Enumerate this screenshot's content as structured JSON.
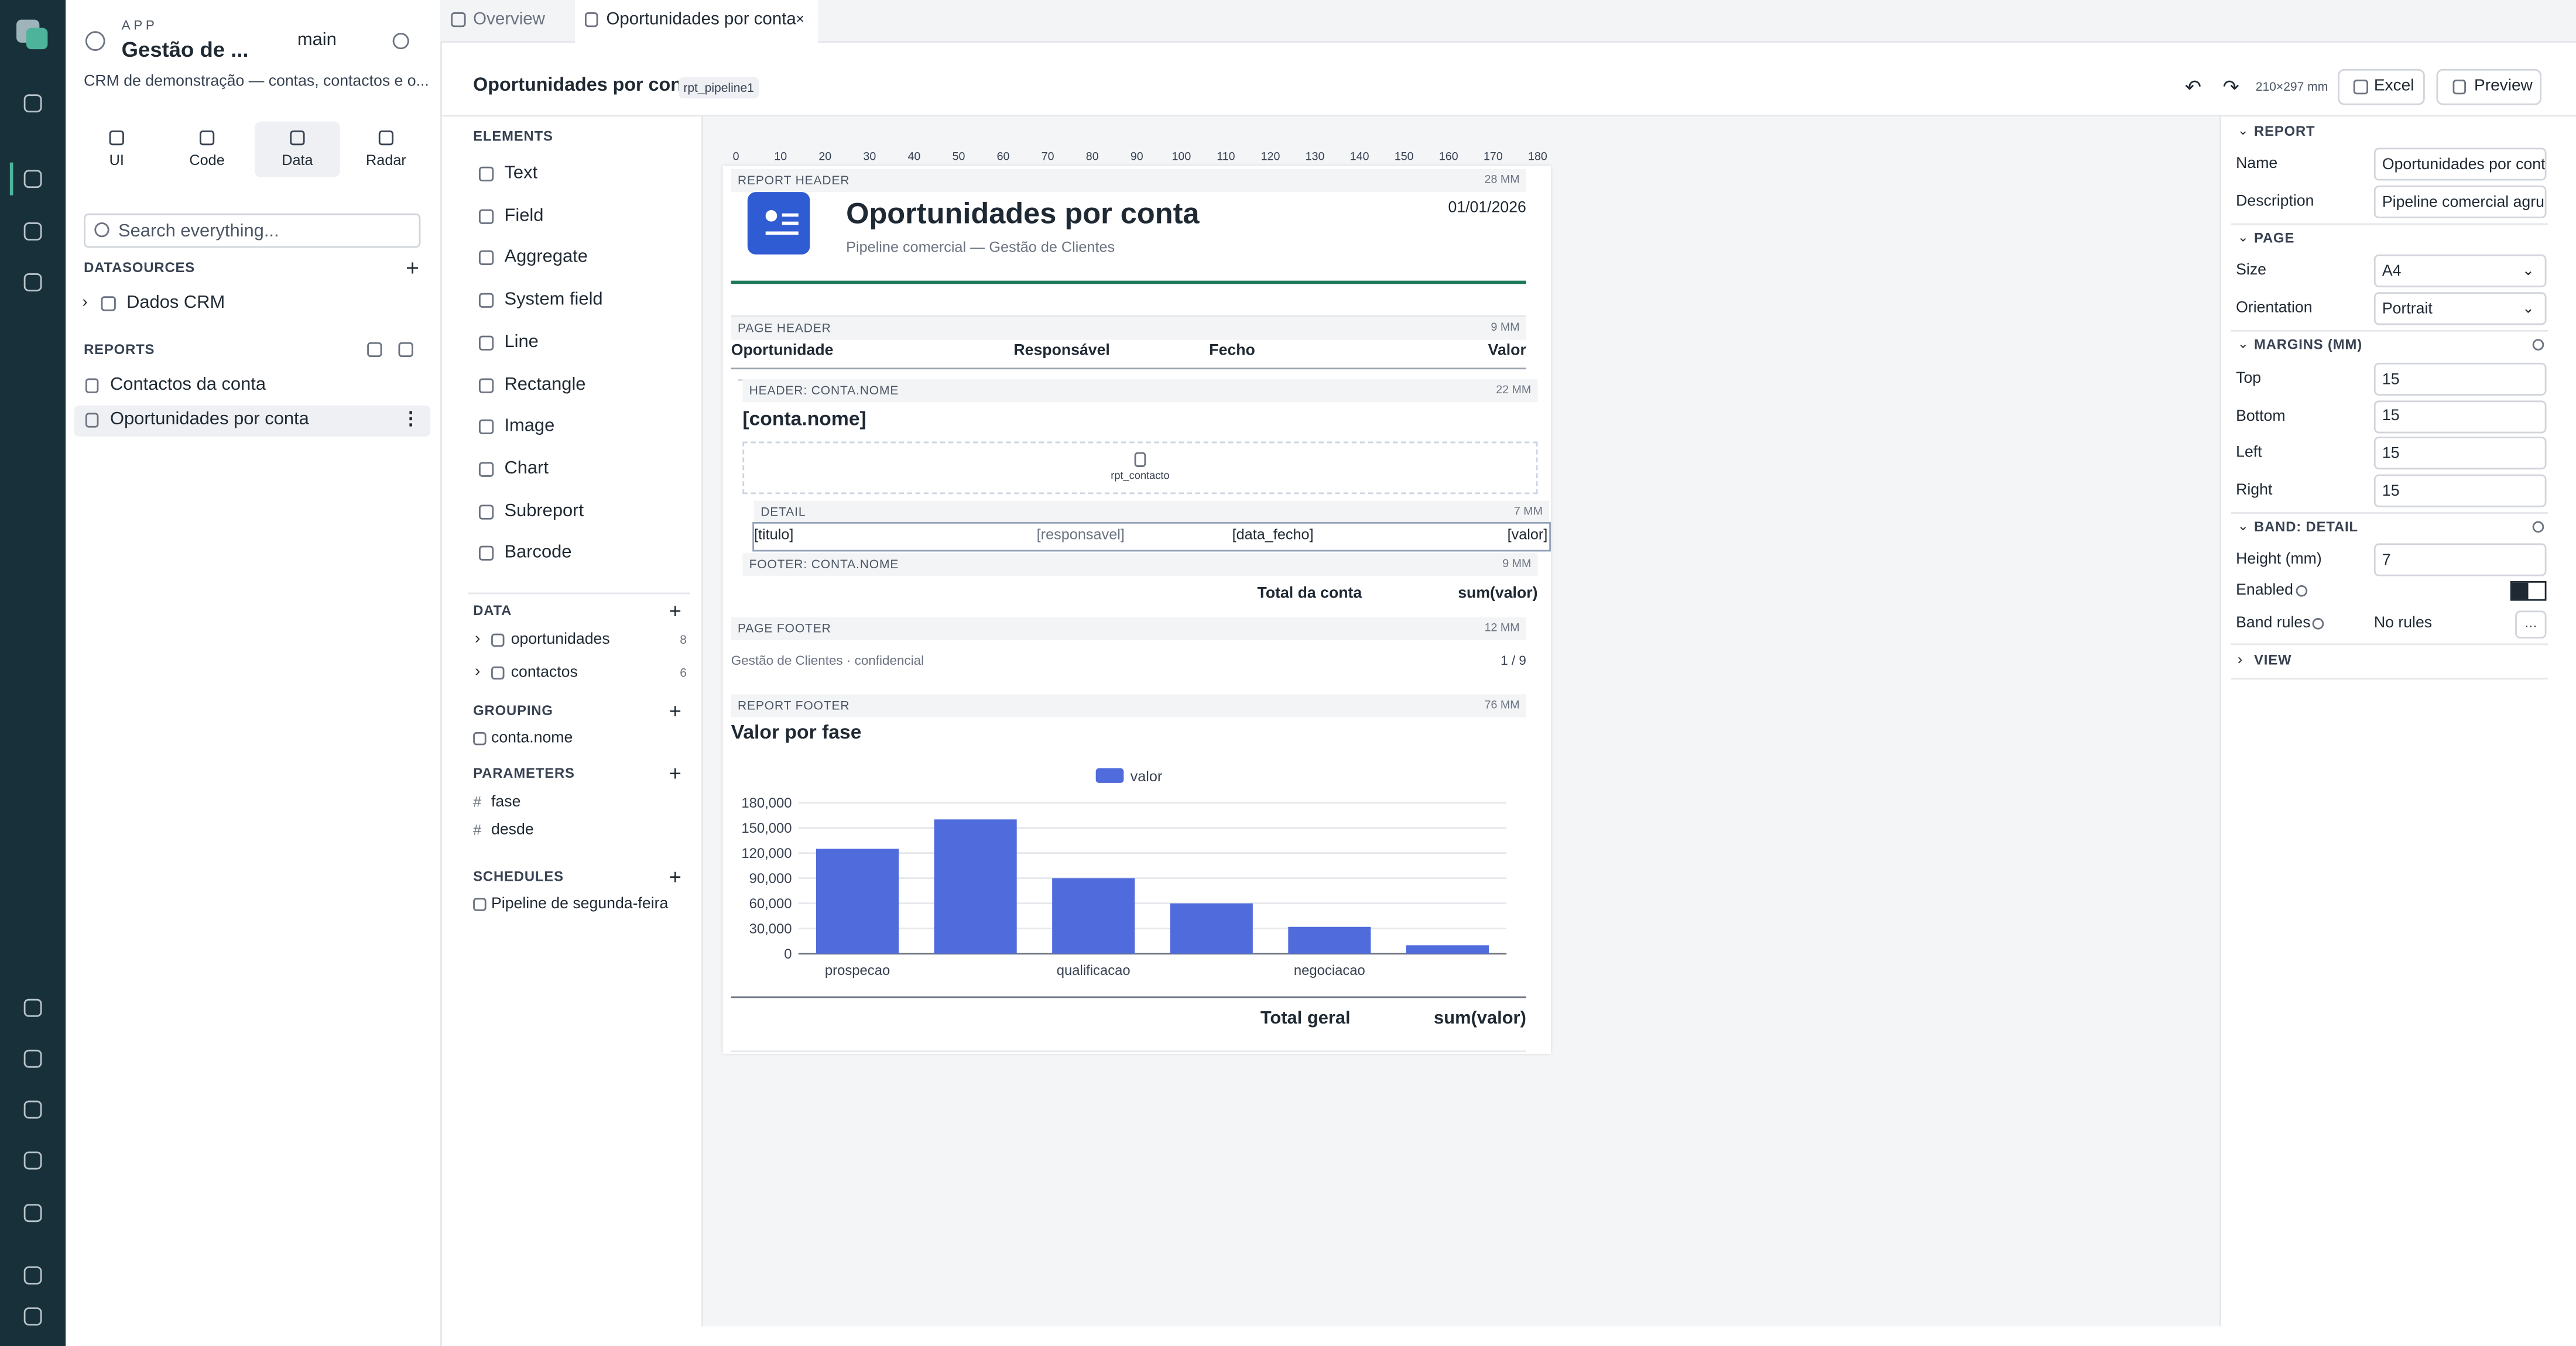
{
  "tabs": [
    "Overview",
    "Oportunidades por conta"
  ],
  "app": {
    "kicker": "APP",
    "name": "Gestão de ...",
    "branch": "main",
    "description": "CRM de demonstração — contas, contactos e o..."
  },
  "modes": [
    "UI",
    "Code",
    "Data",
    "Radar"
  ],
  "search_placeholder": "Search everything...",
  "datasources": {
    "title": "DATASOURCES",
    "items": [
      "Dados CRM"
    ]
  },
  "reports": {
    "title": "REPORTS",
    "items": [
      "Contactos da conta",
      "Oportunidades por conta"
    ]
  },
  "editor": {
    "title": "Oportunidades por conta",
    "id": "rpt_pipeline1",
    "page_size": "210×297 mm",
    "actions": [
      "Excel",
      "Preview"
    ]
  },
  "elements": {
    "title": "ELEMENTS",
    "items": [
      "Text",
      "Field",
      "Aggregate",
      "System field",
      "Line",
      "Rectangle",
      "Image",
      "Chart",
      "Subreport",
      "Barcode"
    ]
  },
  "data": {
    "title": "DATA",
    "items": [
      {
        "name": "oportunidades",
        "count": 8
      },
      {
        "name": "contactos",
        "count": 6
      }
    ]
  },
  "grouping": {
    "title": "GROUPING",
    "items": [
      "conta.nome"
    ]
  },
  "parameters": {
    "title": "PARAMETERS",
    "items": [
      "fase",
      "desde"
    ]
  },
  "schedules": {
    "title": "SCHEDULES",
    "items": [
      "Pipeline de segunda-feira"
    ]
  },
  "ruler": [
    0,
    10,
    20,
    30,
    40,
    50,
    60,
    70,
    80,
    90,
    100,
    110,
    120,
    130,
    140,
    150,
    160,
    170,
    180
  ],
  "report": {
    "header": {
      "band": "REPORT HEADER",
      "height": "28 MM",
      "title": "Oportunidades por conta",
      "subtitle": "Pipeline comercial — Gestão de Clientes",
      "date": "01/01/2026"
    },
    "page_header": {
      "band": "PAGE HEADER",
      "height": "9 MM",
      "columns": [
        "Oportunidade",
        "Responsável",
        "Fecho",
        "Valor"
      ]
    },
    "group_header": {
      "band": "HEADER: CONTA.NOME",
      "height": "22 MM",
      "field": "[conta.nome]",
      "subreport": "rpt_contacto"
    },
    "detail": {
      "band": "DETAIL",
      "height": "7 MM",
      "fields": [
        "[titulo]",
        "[responsavel]",
        "[data_fecho]",
        "[valor]"
      ]
    },
    "group_footer": {
      "band": "FOOTER: CONTA.NOME",
      "height": "9 MM",
      "label": "Total da conta",
      "value": "sum(valor)"
    },
    "page_footer": {
      "band": "PAGE FOOTER",
      "height": "12 MM",
      "text": "Gestão de Clientes · confidencial",
      "page": "1 / 9"
    },
    "report_footer": {
      "band": "REPORT FOOTER",
      "height": "76 MM",
      "label": "Total geral",
      "value": "sum(valor)"
    }
  },
  "chart_data": {
    "type": "bar",
    "title": "Valor por fase",
    "categories": [
      "prospecao",
      null,
      "qualificacao",
      null,
      "negociacao",
      null
    ],
    "series": [
      {
        "name": "valor",
        "color": "#4f6bdc",
        "values": [
          125000,
          160000,
          90000,
          60000,
          32000,
          10000
        ]
      }
    ],
    "ylim": [
      0,
      180000
    ],
    "yticks": [
      0,
      {
        "value": 30000,
        "label": "30,000"
      },
      {
        "value": 60000,
        "label": "60,000"
      },
      {
        "value": 90000,
        "label": "90,000"
      },
      {
        "value": 120000,
        "label": "120,000"
      },
      {
        "value": 150000,
        "label": "150,000"
      },
      {
        "value": 180000,
        "label": "180,000"
      }
    ],
    "grid": true,
    "legend": "top"
  },
  "properties": {
    "report": {
      "title": "REPORT",
      "name_label": "Name",
      "name": "Oportunidades por conta",
      "description_label": "Description",
      "description": "Pipeline comercial agru"
    },
    "page": {
      "title": "PAGE",
      "size_label": "Size",
      "size": "A4",
      "orientation_label": "Orientation",
      "orientation": "Portrait"
    },
    "margins": {
      "title": "MARGINS (MM)",
      "fields": [
        {
          "label": "Top",
          "value": "15"
        },
        {
          "label": "Bottom",
          "value": "15"
        },
        {
          "label": "Left",
          "value": "15"
        },
        {
          "label": "Right",
          "value": "15"
        }
      ]
    },
    "band": {
      "title": "BAND: DETAIL",
      "height_label": "Height (mm)",
      "height": "7",
      "enabled_label": "Enabled",
      "rules_label": "Band rules",
      "rules": "No rules"
    },
    "view": {
      "title": "VIEW"
    }
  }
}
